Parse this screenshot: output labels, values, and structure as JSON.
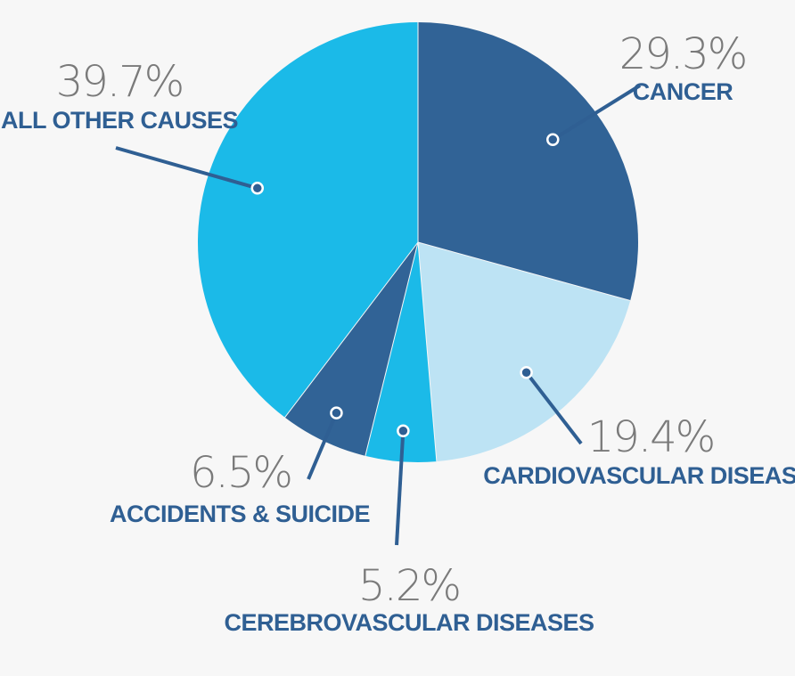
{
  "chart_data": {
    "type": "pie",
    "title": "",
    "slices": [
      {
        "label": "CANCER",
        "value": 29.3,
        "value_label": "29.3%",
        "color": "#316396"
      },
      {
        "label": "CARDIOVASCULAR DISEASE",
        "value": 19.4,
        "value_label": "19.4%",
        "color": "#bde3f4"
      },
      {
        "label": "CEREBROVASCULAR DISEASES",
        "value": 5.2,
        "value_label": "5.2%",
        "color": "#1bbae8"
      },
      {
        "label": "ACCIDENTS & SUICIDE",
        "value": 6.5,
        "value_label": "6.5%",
        "color": "#316396"
      },
      {
        "label": "ALL OTHER CAUSES",
        "value": 39.7,
        "value_label": "39.7%",
        "color": "#1bbae8"
      }
    ],
    "start_angle": "12 o'clock",
    "direction": "clockwise",
    "legend": "none",
    "labels": "outside with leader lines"
  },
  "colors": {
    "label_text": "#2f5f93",
    "percent_text": "#7a7a7a",
    "background": "#f7f7f7"
  }
}
